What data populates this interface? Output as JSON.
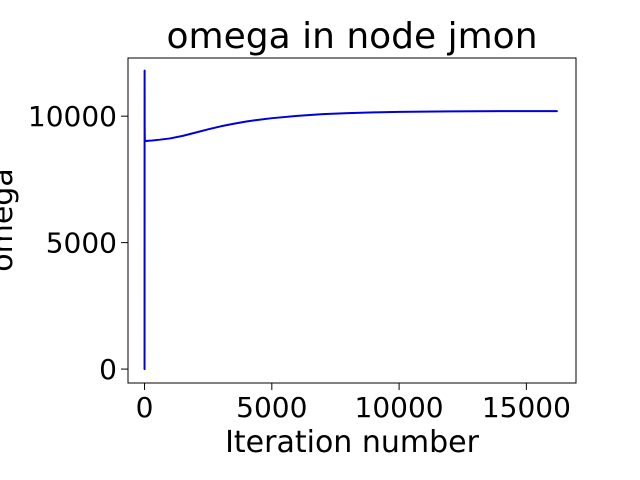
{
  "chart_data": {
    "type": "line",
    "title": "omega in node jmon",
    "xlabel": "Iteration number",
    "ylabel": "omega",
    "xlim": [
      -650,
      16950
    ],
    "ylim": [
      -550,
      12300
    ],
    "x_ticks": [
      0,
      5000,
      10000,
      15000
    ],
    "x_tick_labels": [
      "0",
      "5000",
      "10000",
      "15000"
    ],
    "y_ticks": [
      0,
      5000,
      10000
    ],
    "y_tick_labels": [
      "0",
      "5000",
      "10000"
    ],
    "grid": false,
    "legend": "none",
    "series": [
      {
        "color": "#0000dd",
        "x": [
          0,
          2,
          5,
          10,
          15,
          20,
          40,
          80,
          150,
          300,
          600,
          1000,
          1500,
          2000,
          2500,
          3000,
          3500,
          4000,
          4500,
          5000,
          6000,
          7000,
          8000,
          9000,
          10000,
          11000,
          12000,
          13000,
          14000,
          15000,
          16200
        ],
        "y": [
          0,
          11800,
          9600,
          9100,
          9050,
          9020,
          9020,
          9020,
          9030,
          9040,
          9070,
          9120,
          9220,
          9350,
          9480,
          9600,
          9700,
          9790,
          9860,
          9920,
          10010,
          10080,
          10120,
          10150,
          10170,
          10180,
          10190,
          10195,
          10198,
          10200,
          10200
        ]
      }
    ]
  }
}
